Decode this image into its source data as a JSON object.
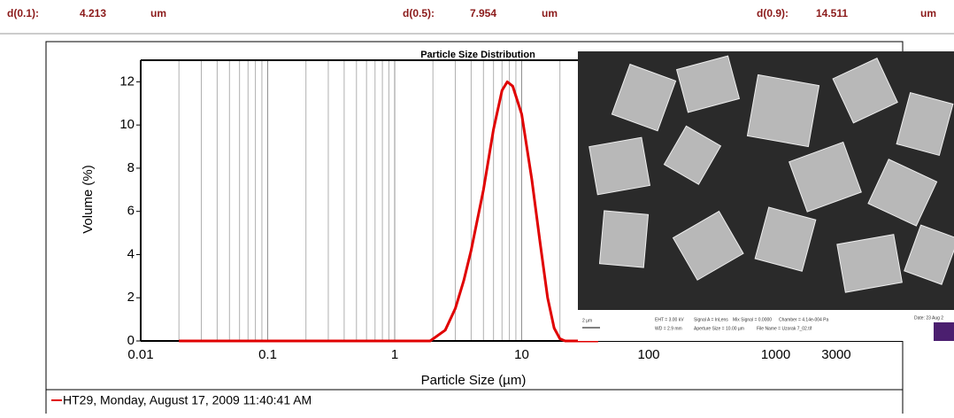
{
  "header": {
    "items": [
      {
        "label": "d(0.1):",
        "value": 4.213,
        "unit": "um"
      },
      {
        "label": "d(0.5):",
        "value": 7.954,
        "unit": "um"
      },
      {
        "label": "d(0.9):",
        "value": 14.511,
        "unit": "um"
      }
    ]
  },
  "chart_data": {
    "type": "line",
    "title": "Particle Size Distribution",
    "x_label": "Particle Size (µm)",
    "y_label": "Volume (%)",
    "x": [
      0.02,
      1.9,
      2.5,
      3,
      3.5,
      4,
      5,
      6,
      7,
      7.7,
      8.5,
      10,
      12,
      14,
      16,
      18,
      20,
      22,
      40
    ],
    "series": [
      {
        "name": "HT29, Monday, August 17, 2009 11:40:41 AM",
        "color": "#e00000",
        "values": [
          0,
          0,
          0.5,
          1.5,
          2.8,
          4.2,
          7,
          9.8,
          11.6,
          12,
          11.8,
          10.5,
          7.5,
          4.5,
          2,
          0.6,
          0.1,
          0,
          0
        ]
      }
    ],
    "xlim": [
      0.01,
      10000
    ],
    "xticks": [
      0.01,
      0.1,
      1,
      10,
      100,
      1000,
      3000
    ],
    "xscale": "log",
    "ylim": [
      0,
      13
    ],
    "yticks": [
      0,
      2,
      4,
      6,
      8,
      10,
      12
    ],
    "grid": true
  },
  "image": {
    "scale_bar": "2 µm",
    "info": [
      "EHT = 3.00 kV",
      "Signal A = InLens",
      "Mix Signal = 0.0000",
      "Chamber = 4.14e-004 Pa",
      "Date: 23 Aug 2",
      "WD = 2.9 mm",
      "Aperture Size = 10.00 µm",
      "File Name = Uzorak 7_02.tif"
    ]
  }
}
